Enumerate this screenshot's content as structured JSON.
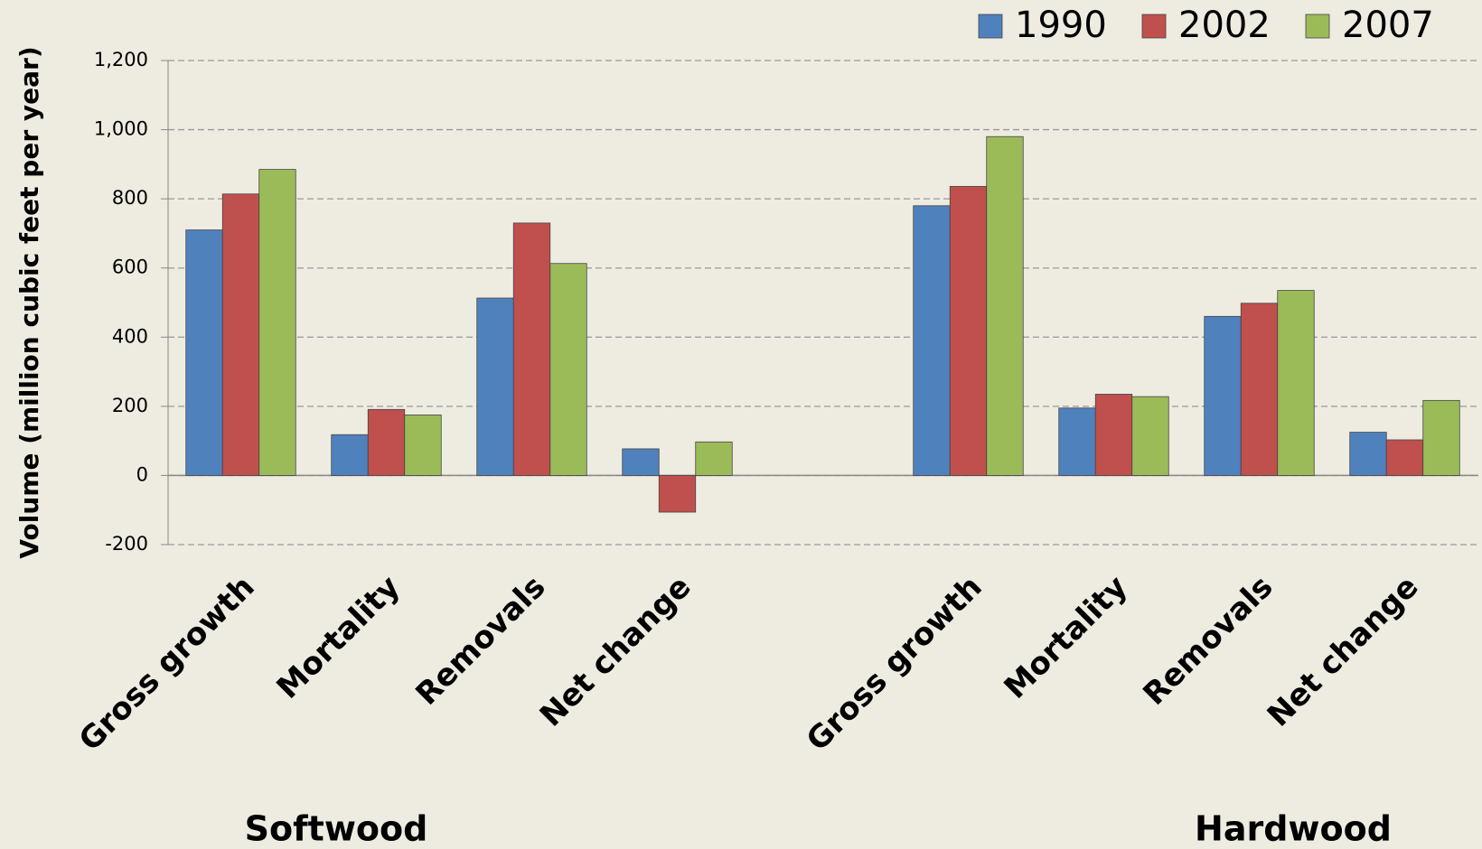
{
  "chart_data": {
    "type": "bar",
    "y_label": "Volume (million cubic feet per year)",
    "categories": [
      "Gross growth",
      "Mortality",
      "Removals",
      "Net change",
      null,
      "Gross growth",
      "Mortality",
      "Removals",
      "Net change"
    ],
    "group_labels": [
      "Softwood",
      "Hardwood"
    ],
    "series": [
      {
        "name": "1990",
        "color": "#4f81bd",
        "values": [
          710,
          118,
          513,
          77,
          null,
          780,
          195,
          460,
          125
        ]
      },
      {
        "name": "2002",
        "color": "#c0504d",
        "values": [
          814,
          191,
          730,
          -106,
          null,
          836,
          235,
          498,
          103
        ]
      },
      {
        "name": "2007",
        "color": "#9bbb59",
        "values": [
          885,
          175,
          613,
          97,
          null,
          980,
          228,
          535,
          217
        ]
      }
    ],
    "ylim": [
      -200,
      1200
    ],
    "yticks": [
      -200,
      0,
      200,
      400,
      600,
      800,
      {
        "value": 1000,
        "label": "1,000"
      },
      {
        "value": 1200,
        "label": "1,200"
      }
    ],
    "grid": true,
    "legend": "top-right"
  }
}
